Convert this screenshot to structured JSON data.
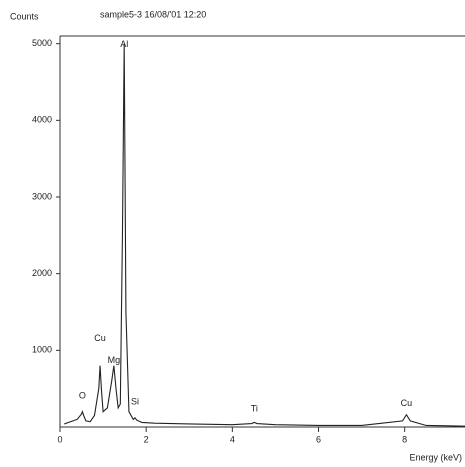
{
  "chart_data": {
    "type": "line",
    "title": "sample5-3 16/08/'01 12:20",
    "y_label": "Counts",
    "x_label": "Energy (keV)",
    "x": [
      0.1,
      0.2,
      0.3,
      0.4,
      0.5,
      0.52,
      0.55,
      0.6,
      0.7,
      0.8,
      0.9,
      0.93,
      0.96,
      1.0,
      1.1,
      1.2,
      1.25,
      1.3,
      1.35,
      1.4,
      1.45,
      1.49,
      1.53,
      1.6,
      1.7,
      1.74,
      1.78,
      1.9,
      2.2,
      3,
      4,
      4.45,
      4.51,
      4.57,
      5,
      6,
      7,
      7.95,
      8.04,
      8.13,
      8.5,
      9,
      9.4
    ],
    "series": [
      {
        "color": "#222222",
        "values": [
          40,
          60,
          80,
          100,
          170,
          200,
          150,
          80,
          70,
          150,
          500,
          800,
          500,
          200,
          250,
          600,
          800,
          500,
          250,
          300,
          2550,
          5000,
          1500,
          200,
          100,
          120,
          90,
          60,
          50,
          40,
          30,
          45,
          60,
          45,
          30,
          20,
          20,
          80,
          160,
          80,
          20,
          15,
          10
        ]
      }
    ],
    "annotations": [
      {
        "text": "O",
        "x": 0.52,
        "y": 300
      },
      {
        "text": "Cu",
        "x": 0.93,
        "y": 1050
      },
      {
        "text": "Mg",
        "x": 1.25,
        "y": 760
      },
      {
        "text": "Al",
        "x": 1.49,
        "y": 4880
      },
      {
        "text": "Si",
        "x": 1.74,
        "y": 220
      },
      {
        "text": "Ti",
        "x": 4.51,
        "y": 130
      },
      {
        "text": "Cu",
        "x": 8.04,
        "y": 200
      }
    ],
    "xlim": [
      0,
      9.4
    ],
    "xticks": [
      0,
      2,
      4,
      6,
      8
    ],
    "ylim": [
      0,
      5100
    ],
    "yticks": [
      1000,
      2000,
      3000,
      4000,
      5000
    ],
    "grid": false
  }
}
